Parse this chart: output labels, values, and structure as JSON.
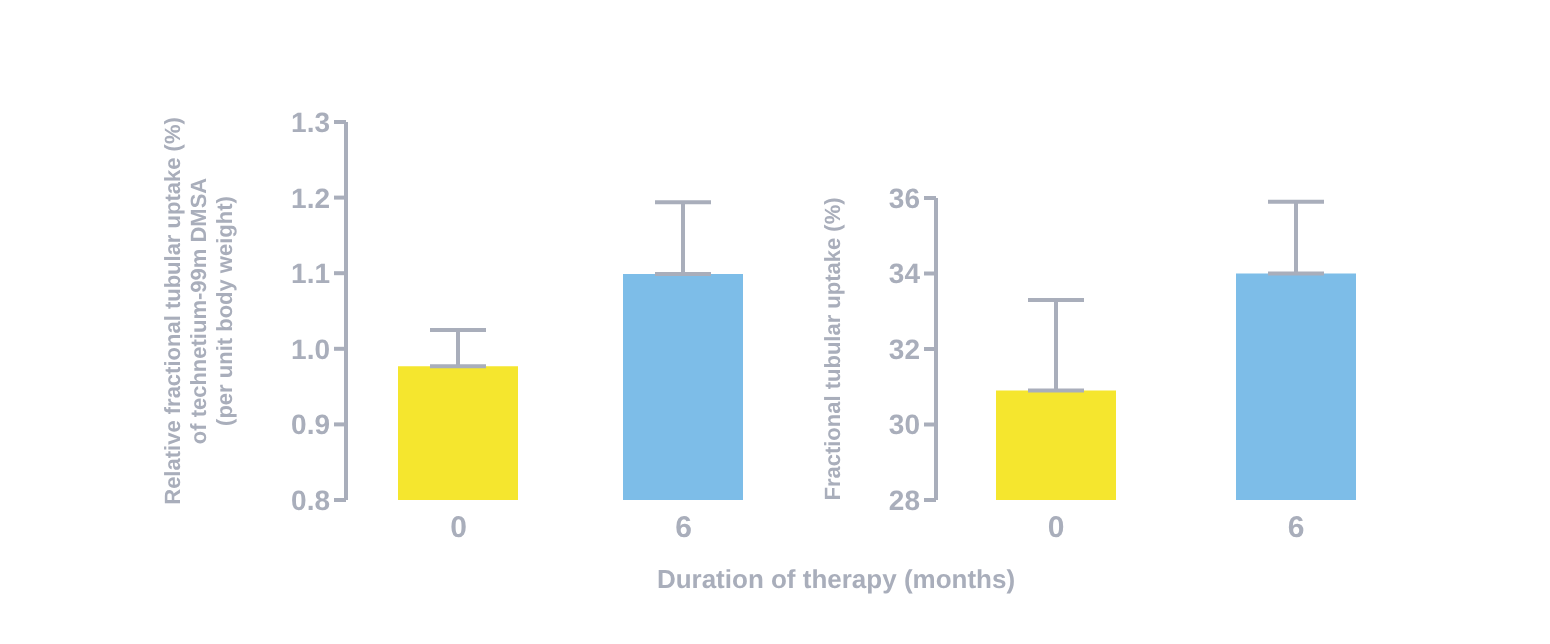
{
  "chart_data": [
    {
      "type": "bar",
      "xlabel": "Duration of therapy (months)",
      "ylabel": "Relative fractional tubular uptake (%)\nof technetium-99m DMSA\n(per unit body weight)",
      "categories": [
        "0",
        "6"
      ],
      "values": [
        0.977,
        1.099
      ],
      "colors": [
        "#f5e62e",
        "#7dbde8"
      ],
      "errors": [
        [
          0.977,
          1.025
        ],
        [
          1.099,
          1.194
        ]
      ],
      "ylim": [
        0.8,
        1.3
      ],
      "yticks": [
        {
          "value": 0.8,
          "label": "0.8"
        },
        {
          "value": 0.9,
          "label": "0.9"
        },
        {
          "value": 1.0,
          "label": "1.0"
        },
        {
          "value": 1.1,
          "label": "1.1"
        },
        {
          "value": 1.2,
          "label": "1.2"
        },
        {
          "value": 1.3,
          "label": "1.3"
        }
      ],
      "grid": false,
      "legend": false
    },
    {
      "type": "bar",
      "ylabel": "Fractional tubular uptake (%)",
      "categories": [
        "0",
        "6"
      ],
      "values": [
        30.9,
        34.0
      ],
      "colors": [
        "#f5e62e",
        "#7dbde8"
      ],
      "errors": [
        [
          30.9,
          33.3
        ],
        [
          34.0,
          35.9
        ]
      ],
      "ylim": [
        28,
        36
      ],
      "yticks": [
        28,
        30,
        32,
        34,
        36
      ],
      "grid": false,
      "legend": false
    }
  ]
}
